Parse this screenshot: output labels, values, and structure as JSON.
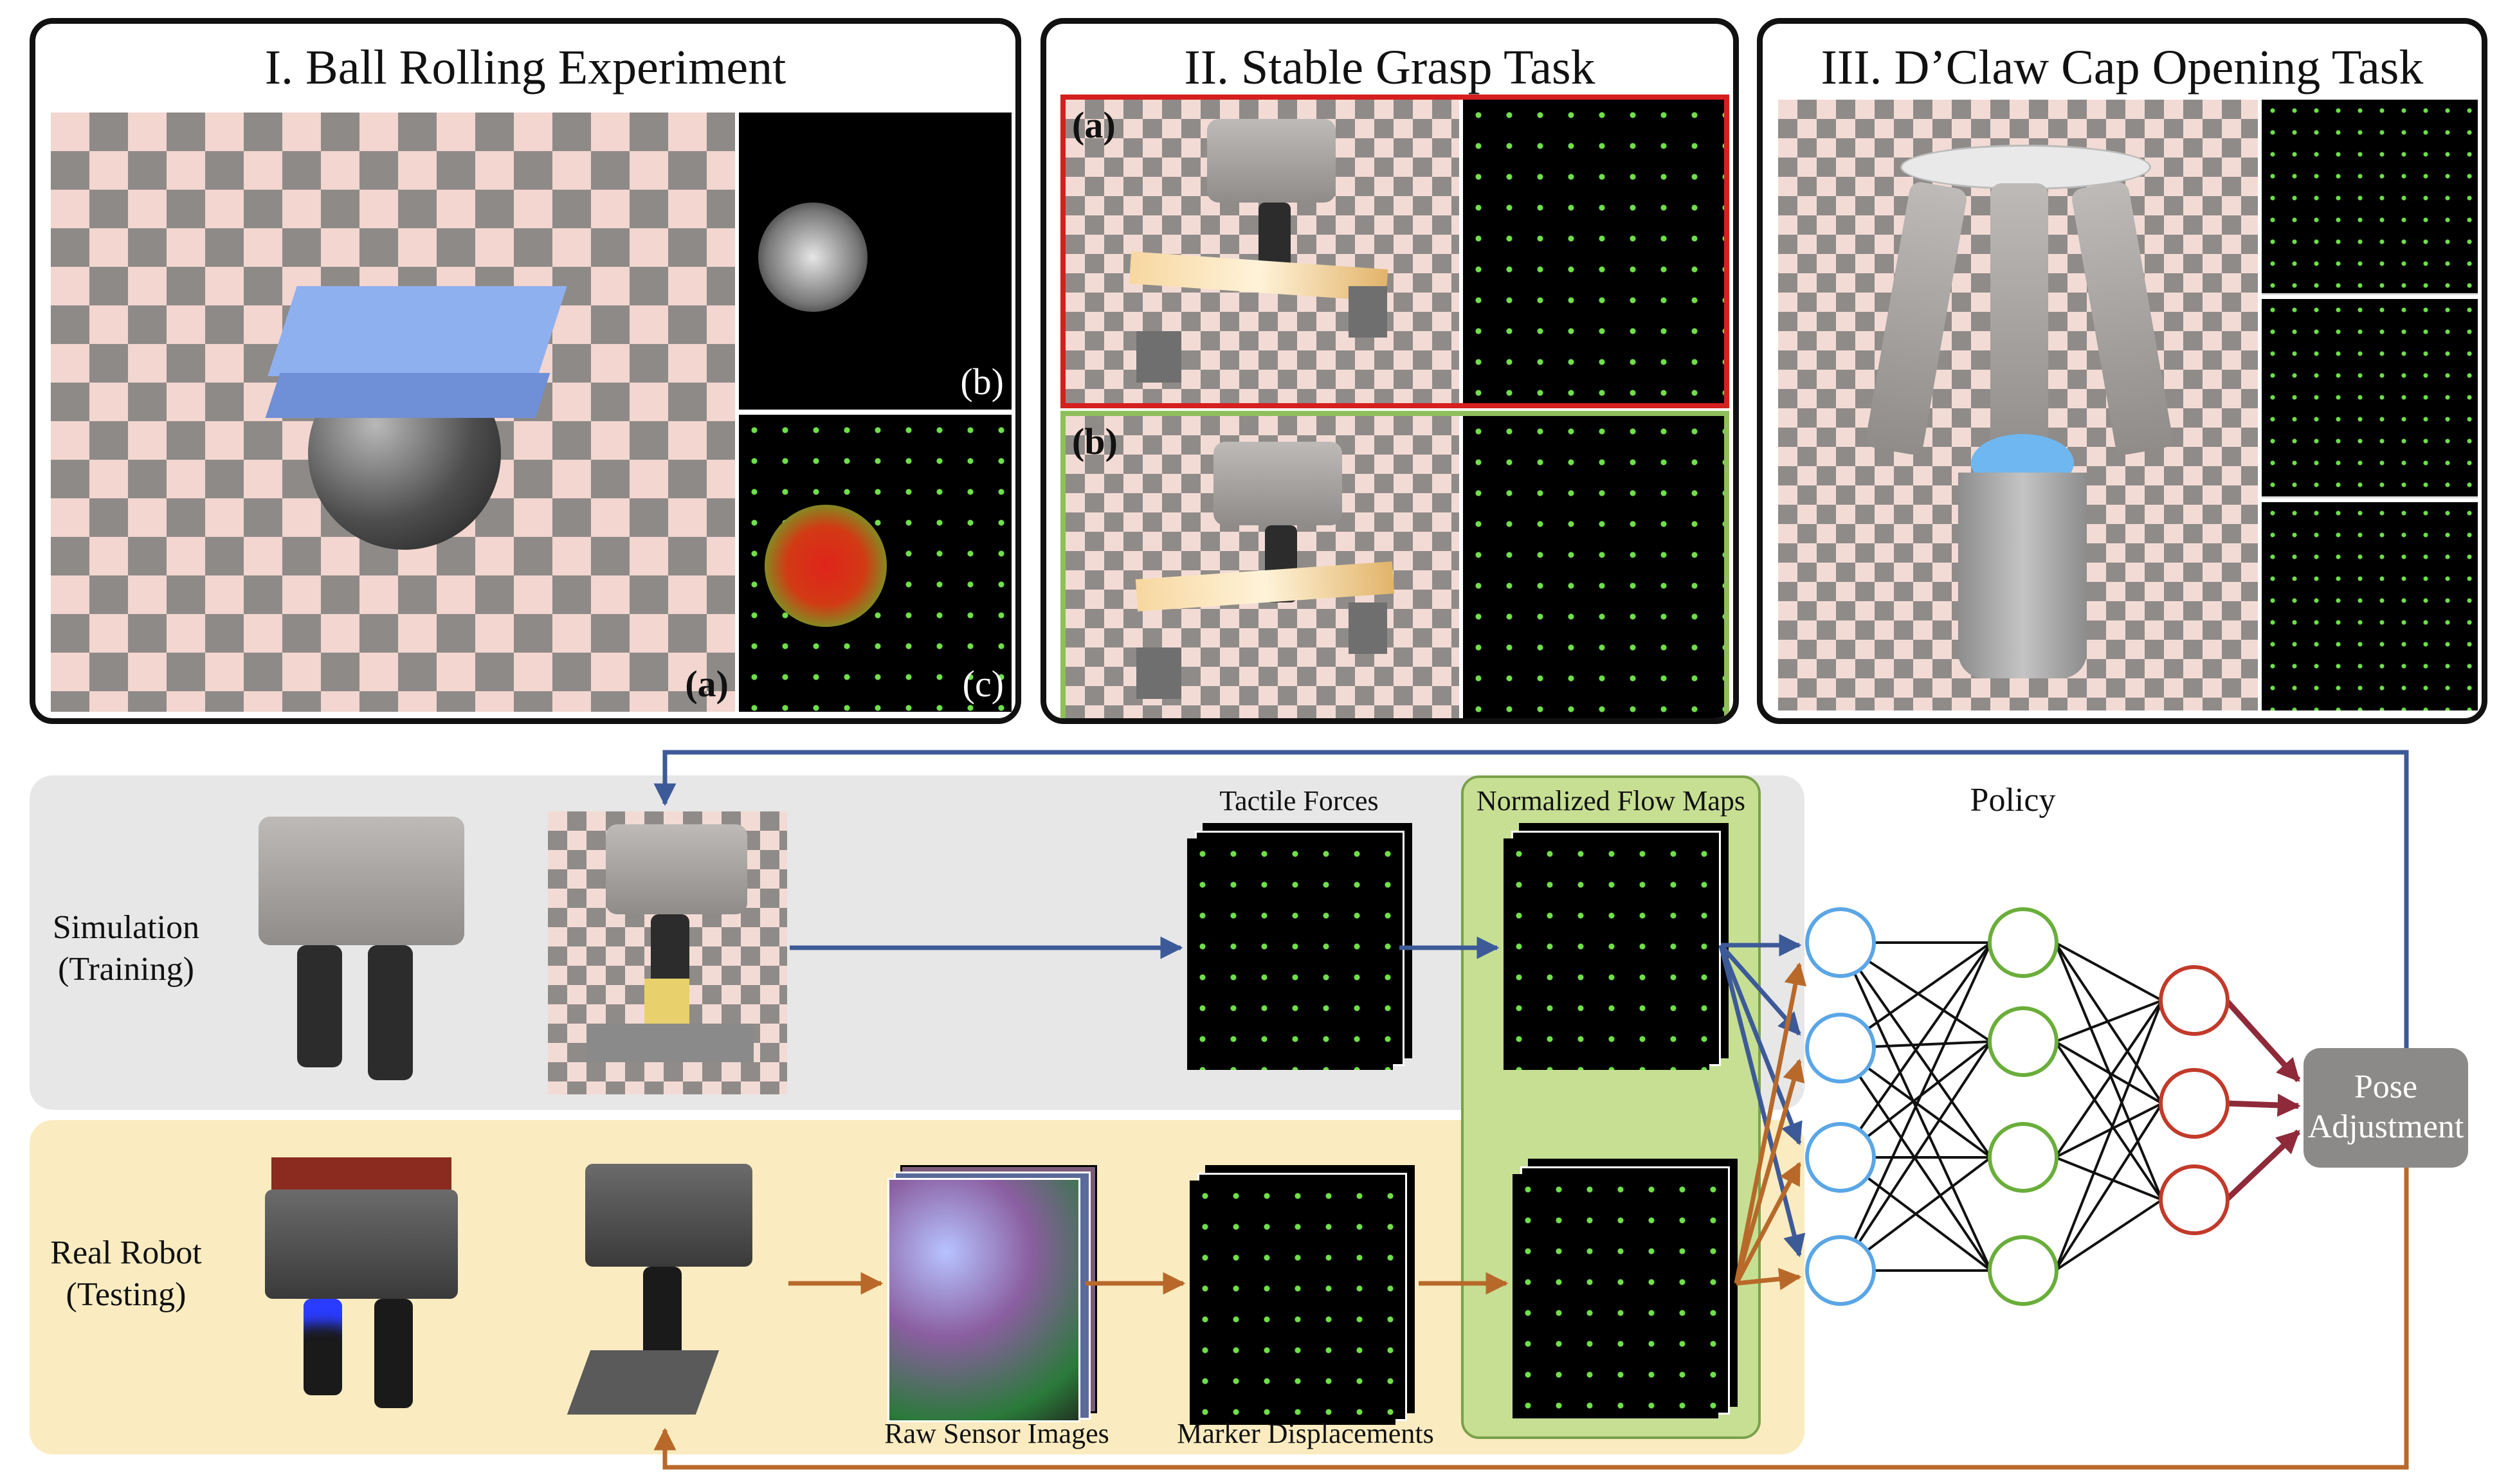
{
  "panels": {
    "ball_rolling": {
      "title": "I. Ball Rolling Experiment",
      "label_a": "(a)",
      "label_b": "(b)",
      "label_c": "(c)"
    },
    "stable_grasp": {
      "title": "II. Stable Grasp Task",
      "label_a": "(a)",
      "label_b": "(b)"
    },
    "dclaw": {
      "title": "III. D’Claw Cap Opening Task"
    }
  },
  "pipeline": {
    "simulation_label": "Simulation\n(Training)",
    "real_label": "Real Robot\n(Testing)",
    "tactile_forces": "Tactile Forces",
    "normalized_flow_maps": "Normalized Flow Maps",
    "policy": "Policy",
    "raw_sensor_images": "Raw Sensor Images",
    "marker_displacements": "Marker Displacements",
    "pose_adjustment": "Pose\nAdjustment"
  },
  "colors": {
    "sim_arrow": "#3d5a98",
    "real_arrow": "#b8692a",
    "input_node": "#5aa6e6",
    "hidden_node": "#6aae3a",
    "output_node": "#c23a2a",
    "output_arrow": "#8e2a3a",
    "red_frame": "#d61f1f",
    "green_frame": "#8fbf5a"
  }
}
